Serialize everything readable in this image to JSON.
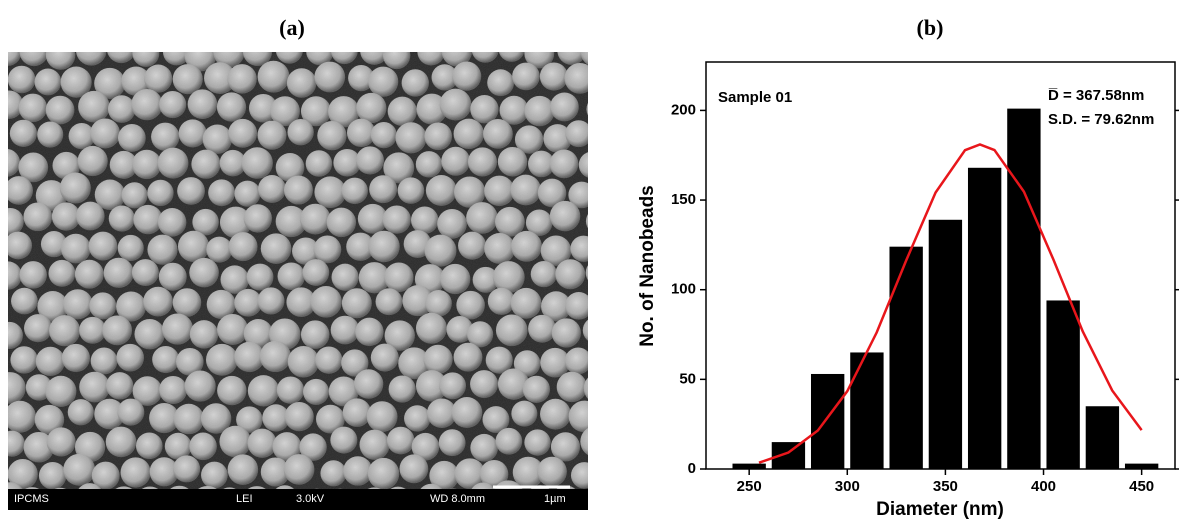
{
  "panel_a": {
    "label": "(a)",
    "annotations": [
      "IPCMS",
      "LEI",
      "3.0kV",
      "WD 8.0mm",
      "1µm"
    ]
  },
  "chart_data": {
    "type": "bar",
    "title": "(b)",
    "x_label": "Diameter (nm)",
    "y_label": "No. of Nanobeads",
    "annotations": [
      "Sample 01",
      "D̅ = 367.58nm",
      "S.D. = 79.62nm"
    ],
    "x": [
      250,
      270,
      290,
      310,
      330,
      350,
      370,
      390,
      410,
      430,
      450
    ],
    "values": [
      3,
      15,
      53,
      65,
      124,
      139,
      168,
      201,
      94,
      35,
      3
    ],
    "color": "#000000",
    "fit": {
      "type": "line",
      "color": "#e8161b",
      "x": [
        255,
        270,
        285,
        300,
        315,
        330,
        345,
        360,
        367.6,
        375,
        390,
        405,
        420,
        435,
        450
      ],
      "values": [
        3.5,
        9.2,
        21.5,
        43.4,
        76.2,
        116.3,
        154.2,
        177.8,
        181,
        177.9,
        154.7,
        116.9,
        76.7,
        43.8,
        21.7
      ]
    },
    "xlim": [
      228,
      467
    ],
    "ylim": [
      0,
      227
    ],
    "xticks": [
      250,
      300,
      350,
      400,
      450
    ],
    "yticks": [
      0,
      50,
      100,
      150,
      200
    ]
  }
}
